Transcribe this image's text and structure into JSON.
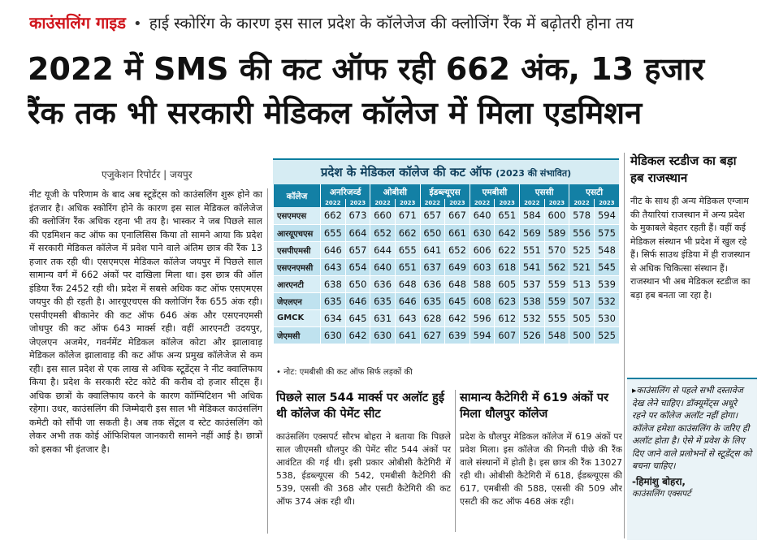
{
  "header": {
    "kicker": "काउंसलिंग गाइड",
    "kicker_separator": "•",
    "kicker_sub": "हाई स्कोरिंग के कारण इस साल प्रदेश के कॉलेजेज की क्लोजिंग रैंक में बढ़ोतरी होना तय",
    "headline_line1": "2022 में SMS की कट ऑफ रही 662 अंक, 13 हजार",
    "headline_line2": "रैंक तक भी सरकारी मेडिकल कॉलेज में मिला एडमिशन"
  },
  "byline": "एजुकेशन रिपोर्टर | जयपुर",
  "main_article": "नीट यूजी के परिणाम के बाद अब स्टूडेंट्स को काउंसलिंग शुरू होने का इंतजार है। अधिक स्कोरिंग होने के कारण इस साल मेडिकल कॉलेजेज की क्लोजिंग रैंक अधिक रहना भी तय है। भास्कर ने जब पिछले साल की एडमिशन कट ऑफ का एनालिसिस किया तो सामने आया कि प्रदेश में सरकारी मेडिकल कॉलेज में प्रवेश पाने वाले अंतिम छात्र की रैंक 13 हजार तक रही थी। एसएमएस मेडिकल कॉलेज जयपुर में पिछले साल सामान्य वर्ग में 662 अंकों पर दाखिला मिला था। इस छात्र की ऑल इंडिया रैंक 2452 रही थी। प्रदेश में सबसे अधिक कट ऑफ एसएमएस जयपुर की ही रहती है। आरयूएचएस की क्लोजिंग रैंक 655 अंक रही। एसपीएमसी बीकानेर की कट ऑफ 646 अंक और एसएनएमसी जोधपुर की कट ऑफ 643 मार्क्स रही। वहीं आरएनटी उदयपुर, जेएलएन अजमेर, गवर्नमेंट मेडिकल कॉलेज कोटा और झालावाड़ मेडिकल कॉलेज झालावाड़ की कट ऑफ अन्य प्रमुख कॉलेजेज से कम रही। इस साल प्रदेश से एक लाख से अधिक स्टूडेंट्स ने नीट क्वालिफाय किया है। प्रदेश के सरकारी स्टेट कोटे की करीब दो हजार सीट्स हैं। अधिक छात्रों के क्वालिफाय करने के कारण कॉम्पिटिशन भी अधिक रहेगा। उधर, काउंसलिंग की जिम्मेदारी इस साल भी मेडिकल काउंसलिंग कमेटी को सौंपी जा सकती है। अब तक सेंट्रल व स्टेट काउंसलिंग को लेकर अभी तक कोई ऑफिशियल जानकारी सामने नहीं आई है। छात्रों को इसका भी इंतजार है।",
  "table": {
    "title": "प्रदेश के मेडिकल कॉलेज की कट ऑफ",
    "title_note": "(2023 की संभावित)",
    "college_header": "कॉलेज",
    "categories": [
      "अनरिजर्व्ड",
      "ओबीसी",
      "ईडब्ल्यूएस",
      "एमबीसी",
      "एससी",
      "एसटी"
    ],
    "years": [
      "2022",
      "2023"
    ],
    "rows": [
      {
        "college": "एसएमएस",
        "values": [
          "662",
          "673",
          "660",
          "671",
          "657",
          "667",
          "640",
          "651",
          "584",
          "600",
          "578",
          "594"
        ]
      },
      {
        "college": "आरयूएचएस",
        "values": [
          "655",
          "664",
          "652",
          "662",
          "650",
          "661",
          "630",
          "642",
          "569",
          "589",
          "556",
          "575"
        ]
      },
      {
        "college": "एसपीएमसी",
        "values": [
          "646",
          "657",
          "644",
          "655",
          "641",
          "652",
          "606",
          "622",
          "551",
          "570",
          "525",
          "548"
        ]
      },
      {
        "college": "एसएनएमसी",
        "values": [
          "643",
          "654",
          "640",
          "651",
          "637",
          "649",
          "603",
          "618",
          "541",
          "562",
          "521",
          "545"
        ]
      },
      {
        "college": "आरएनटी",
        "values": [
          "638",
          "650",
          "636",
          "648",
          "636",
          "648",
          "588",
          "605",
          "537",
          "559",
          "513",
          "539"
        ]
      },
      {
        "college": "जेएलएन",
        "values": [
          "635",
          "646",
          "635",
          "646",
          "635",
          "645",
          "608",
          "623",
          "538",
          "559",
          "507",
          "532"
        ]
      },
      {
        "college": "GMCK",
        "values": [
          "634",
          "645",
          "631",
          "643",
          "628",
          "642",
          "596",
          "612",
          "532",
          "555",
          "505",
          "530"
        ]
      },
      {
        "college": "जेएमसी",
        "values": [
          "630",
          "642",
          "630",
          "641",
          "627",
          "639",
          "594",
          "607",
          "526",
          "548",
          "500",
          "525"
        ]
      }
    ]
  },
  "note": "• नोट: एमबीसी की कट ऑफ सिर्फ लड़कों की",
  "sub_article_1": {
    "title": "पिछले साल 544 मार्क्स पर अलॉट हुई थी कॉलेज की पेमेंट सीट",
    "body": "काउंसलिंग एक्सपर्ट सौरभ बोहरा ने बताया कि पिछले साल जीएमसी धौलपुर की पेमेंट सीट 544 अंकों पर आवंटित की गई थी। इसी प्रकार ओबीसी कैटेगिरी में 538, ईडब्ल्यूएस की 542, एमबीसी कैटेगिरी की 539, एससी की 368 और एसटी कैटेगिरी की कट ऑफ 374 अंक रही थी।"
  },
  "sub_article_2": {
    "title": "सामान्य कैटेगिरी में 619 अंकों पर मिला धौलपुर कॉलेज",
    "body": "प्रदेश के धौलपुर मेडिकल कॉलेज में 619 अंकों पर प्रवेश मिला। इस कॉलेज की गिनती पीछे की रैंक वाले संस्थानों में होती है। इस छात्र की रैंक 13027 रही थी। ओबीसी कैटेगिरी में 618, ईडब्ल्यूएस की 617, एमबीसी की 588, एससी की 509 और एसटी की कट ऑफ 468 अंक रही।"
  },
  "sidebar": {
    "title": "मेडिकल स्टडीज का बड़ा हब राजस्थान",
    "body": "नीट के साथ ही अन्य मेडिकल एग्जाम की तैयारियां राजस्थान में अन्य प्रदेश के मुकाबले बेहतर रहती हैं। वहीं कई मेडिकल संस्थान भी प्रदेश में खुल रहे हैं। सिर्फ साउथ इंडिया में ही राजस्थान से अधिक चिकित्सा संस्थान हैं। राजस्थान भी अब मेडिकल स्टडीज का बड़ा हब बनता जा रहा है।"
  },
  "quote": {
    "body": "▸काउंसलिंग से पहले सभी दस्तावेज देख लेने चाहिए। डॉक्यूमेंट्स अधूरे रहने पर कॉलेज अलॉट नहीं होगा। कॉलेज हमेशा काउंसलिंग के जरिए ही अलॉट होता है। ऐसे में प्रवेश के लिए दिए जाने वाले प्रलोभनों से स्टूडेंट्स को बचना चाहिए।",
    "name": "-हिमांशु बोहरा,",
    "role": "काउंसलिंग एक्सपर्ट"
  }
}
